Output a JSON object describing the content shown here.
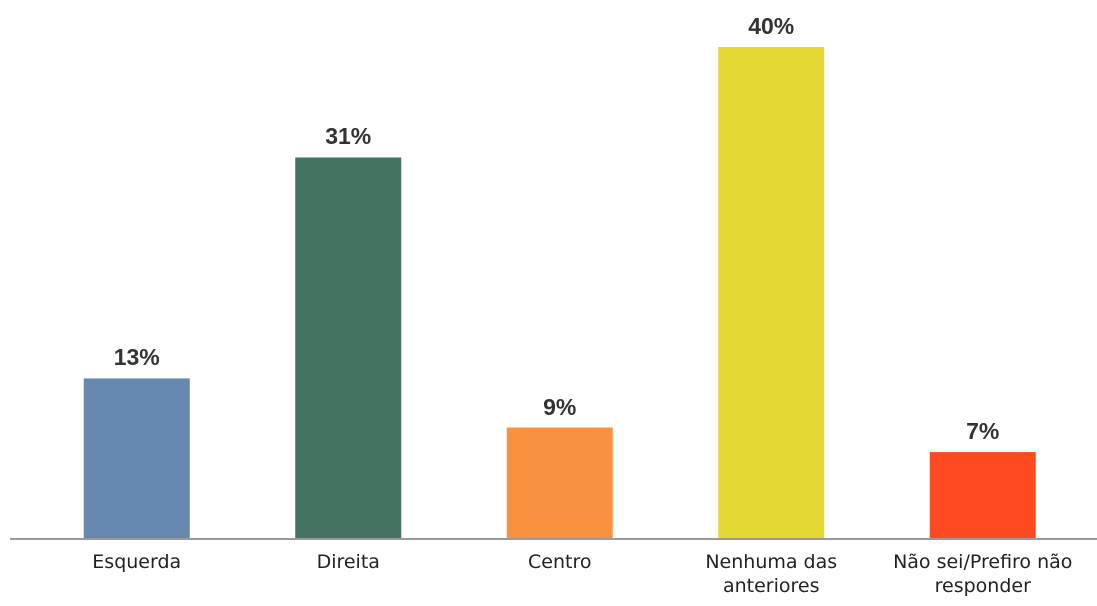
{
  "chart_data": {
    "type": "bar",
    "categories": [
      "Esquerda",
      "Direita",
      "Centro",
      "Nenhuma das anteriores",
      "Não sei/Prefiro não responder"
    ],
    "values": [
      13,
      31,
      9,
      40,
      7
    ],
    "value_labels": [
      "13%",
      "31%",
      "9%",
      "40%",
      "7%"
    ],
    "colors": [
      "#6688b0",
      "#447362",
      "#f89240",
      "#e4d835",
      "#fe4a20"
    ]
  }
}
